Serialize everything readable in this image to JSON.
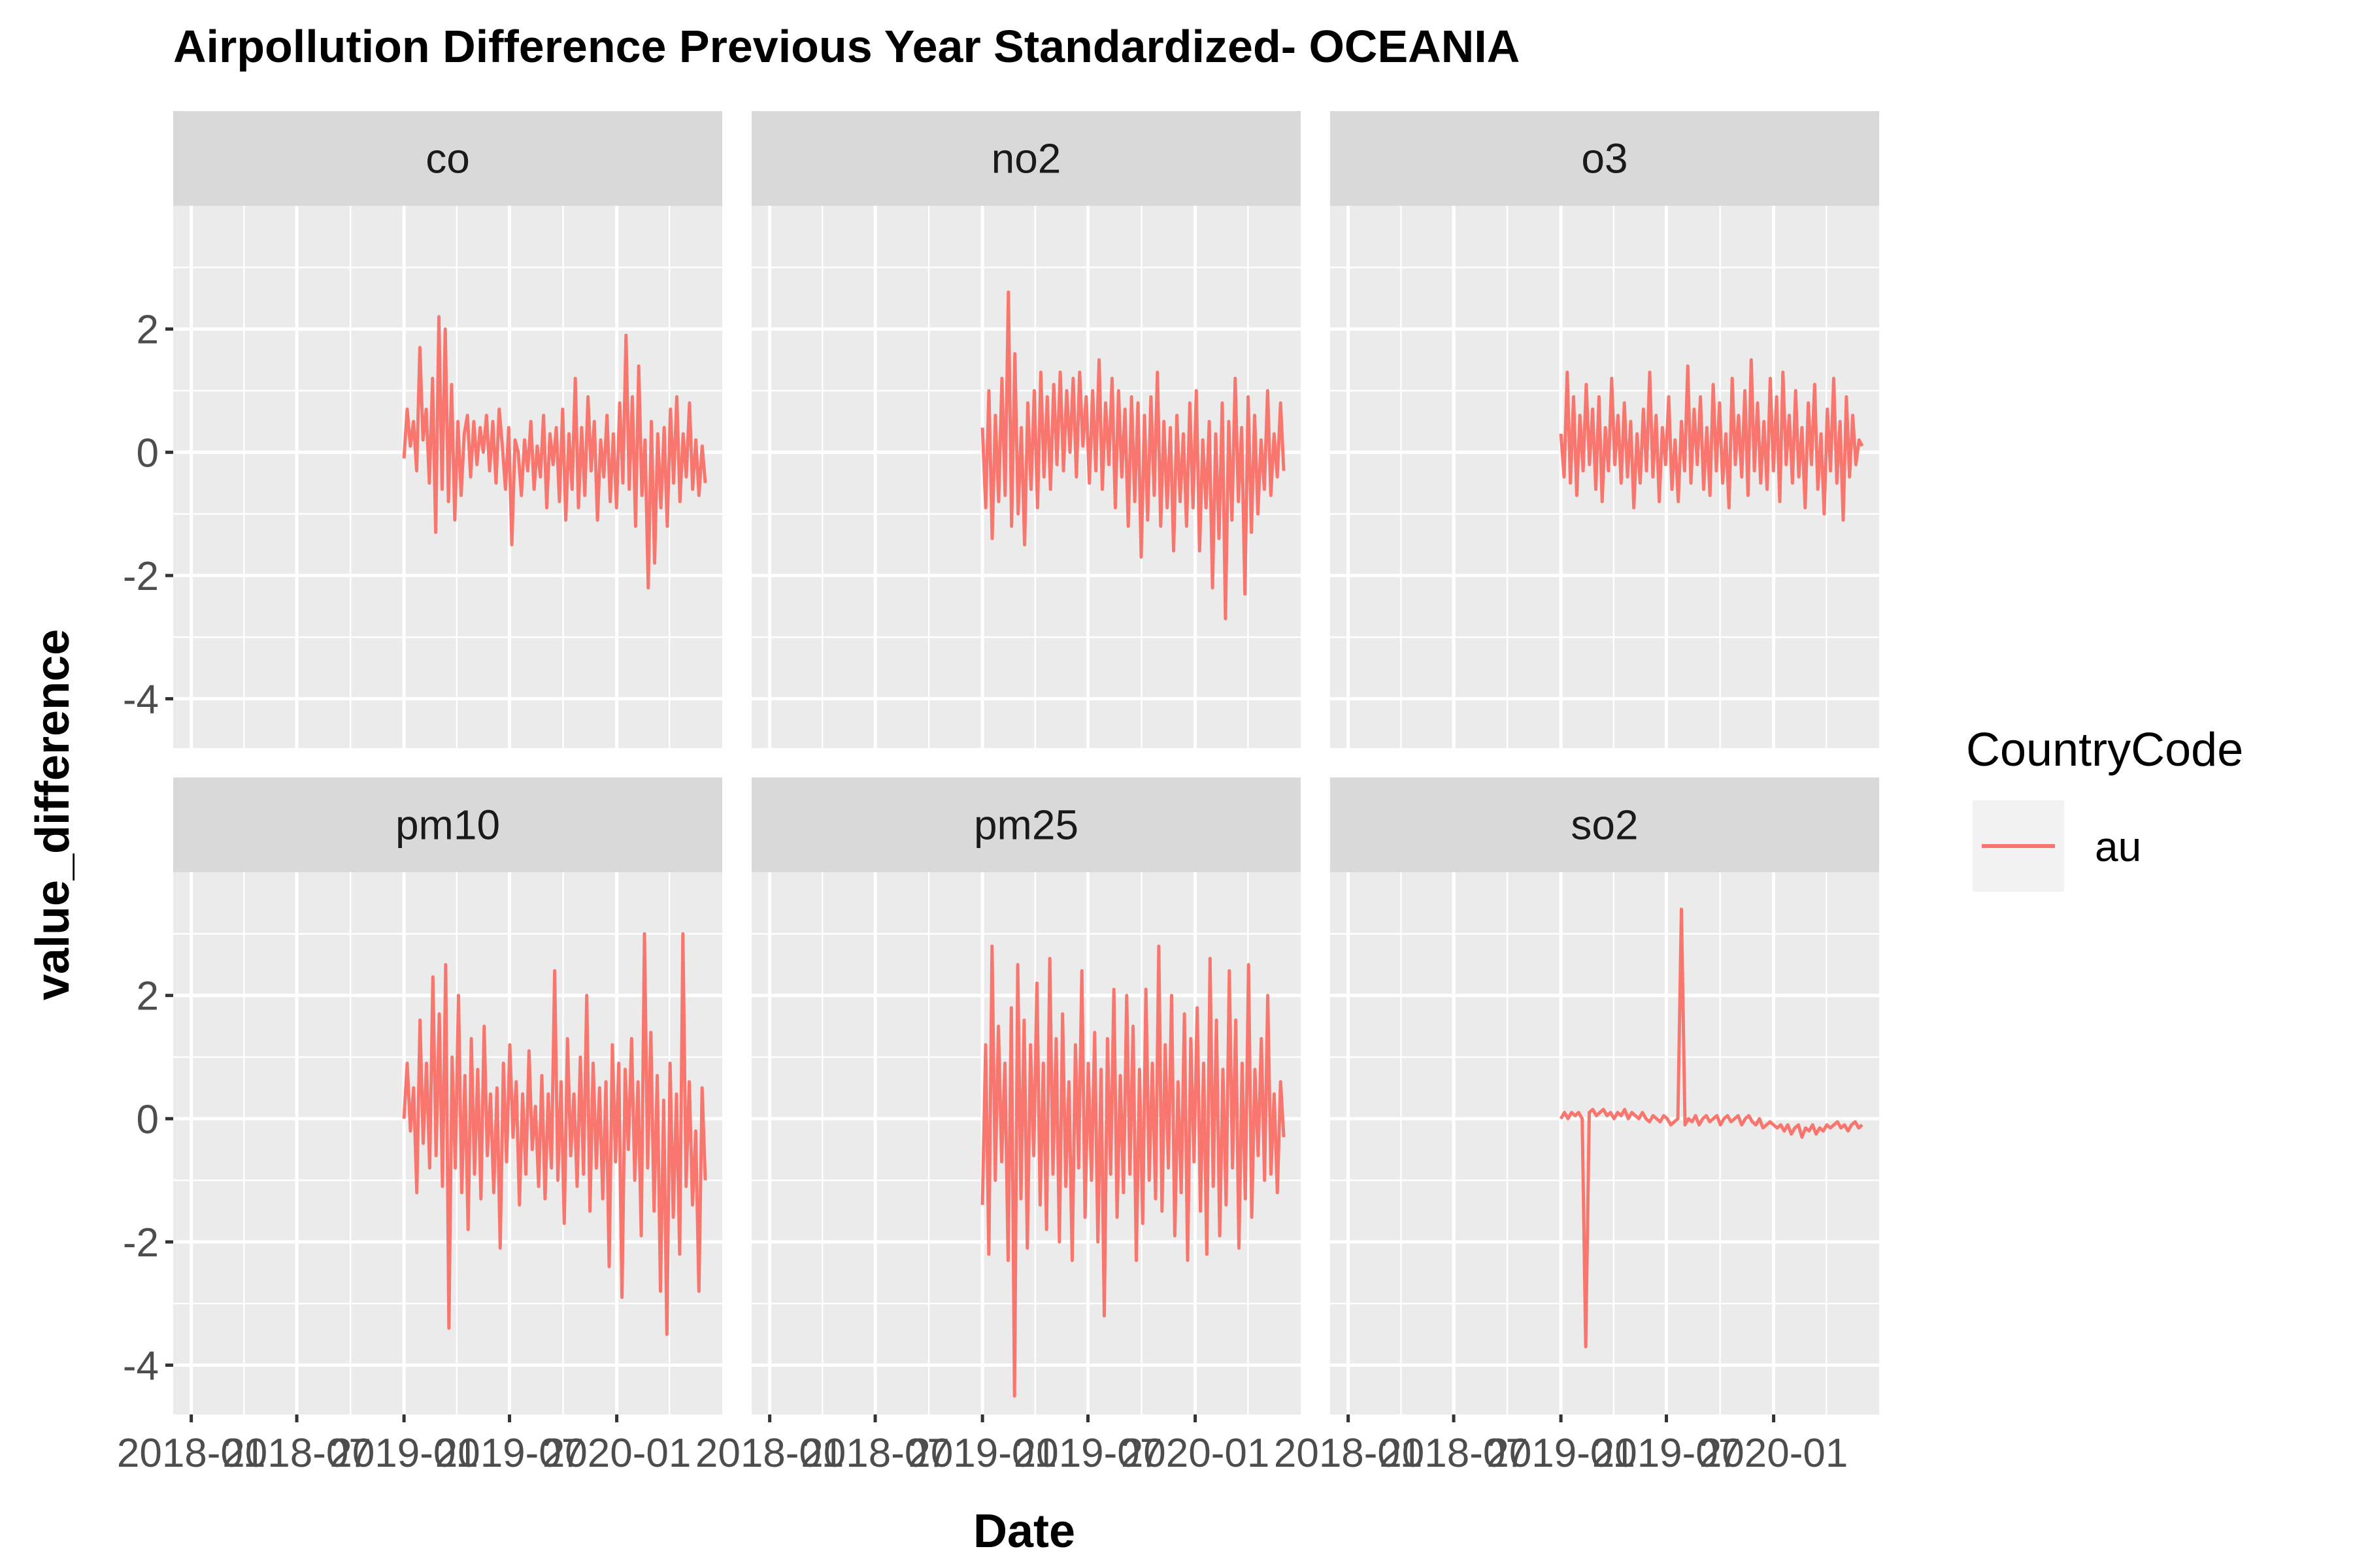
{
  "chart_data": {
    "type": "line",
    "title": "Airpollution Difference Previous Year Standardized- OCEANIA",
    "xlabel": "Date",
    "ylabel": "value_difference",
    "x_ticks": [
      "2018-01",
      "2018-07",
      "2019-01",
      "2019-07",
      "2020-01"
    ],
    "y_ticks": [
      -4,
      -2,
      0,
      2
    ],
    "xlim": [
      "2017-12-01",
      "2020-06-30"
    ],
    "ylim": [
      -4.8,
      4.0
    ],
    "grid": true,
    "legend": {
      "title": "CountryCode",
      "position": "right",
      "entries": [
        "au"
      ]
    },
    "series_color": "#F8766D",
    "panel_background": "#EBEBEB",
    "strip_background": "#D9D9D9",
    "facets": [
      {
        "label": "co",
        "series": [
          {
            "name": "au",
            "x_start": "2019-01-01",
            "x_end": "2020-06-01",
            "values": [
              -0.1,
              0.7,
              0.1,
              0.5,
              -0.3,
              1.7,
              0.2,
              0.7,
              -0.5,
              1.2,
              -1.3,
              2.2,
              -0.6,
              2.0,
              -0.8,
              1.1,
              -1.1,
              0.5,
              -0.7,
              0.3,
              0.6,
              -0.4,
              0.5,
              -0.2,
              0.4,
              0.0,
              0.6,
              -0.3,
              0.5,
              -0.5,
              0.7,
              0.1,
              -0.6,
              0.4,
              -1.5,
              0.2,
              0.0,
              -0.7,
              0.2,
              -0.3,
              0.5,
              -0.6,
              0.1,
              -0.4,
              0.6,
              -0.9,
              0.3,
              -0.2,
              0.4,
              -0.8,
              0.7,
              -1.1,
              0.3,
              -0.6,
              1.2,
              -0.9,
              0.4,
              -0.7,
              0.9,
              -0.3,
              0.5,
              -1.1,
              0.2,
              -0.4,
              0.6,
              -0.8,
              0.3,
              -0.9,
              0.8,
              -0.5,
              1.9,
              -0.6,
              0.9,
              -1.2,
              1.4,
              -0.7,
              0.2,
              -2.2,
              0.5,
              -1.8,
              0.3,
              -0.9,
              0.4,
              -1.2,
              0.7,
              -0.5,
              0.9,
              -0.8,
              0.3,
              -0.4,
              0.8,
              -0.6,
              0.2,
              -0.7,
              0.1,
              -0.5
            ]
          }
        ]
      },
      {
        "label": "no2",
        "series": [
          {
            "name": "au",
            "x_start": "2019-01-01",
            "x_end": "2020-06-01",
            "values": [
              0.4,
              -0.9,
              1.0,
              -1.4,
              0.6,
              -0.8,
              1.2,
              -0.7,
              2.6,
              -1.2,
              1.6,
              -1.0,
              0.4,
              -1.5,
              0.8,
              -0.6,
              1.0,
              -0.9,
              1.3,
              -0.4,
              0.9,
              -0.6,
              1.1,
              -0.2,
              1.3,
              -0.3,
              1.0,
              0.0,
              1.2,
              -0.4,
              1.3,
              0.1,
              0.9,
              -0.5,
              1.0,
              -0.3,
              1.5,
              -0.6,
              0.8,
              -0.2,
              1.2,
              -0.9,
              1.0,
              -0.4,
              0.7,
              -1.2,
              0.9,
              -0.8,
              0.8,
              -1.7,
              0.6,
              -1.1,
              0.9,
              -0.7,
              1.3,
              -1.2,
              0.5,
              -0.9,
              0.4,
              -1.6,
              0.6,
              -0.8,
              0.3,
              -1.2,
              0.8,
              -0.9,
              1.0,
              -1.6,
              0.2,
              -0.9,
              0.5,
              -2.2,
              0.3,
              -1.4,
              0.8,
              -2.7,
              0.5,
              -1.1,
              1.2,
              -0.8,
              0.4,
              -2.3,
              0.9,
              -1.3,
              0.6,
              -1.0,
              0.2,
              -0.6,
              1.0,
              -0.7,
              0.3,
              -0.4,
              0.8,
              -0.3
            ]
          }
        ]
      },
      {
        "label": "o3",
        "series": [
          {
            "name": "au",
            "x_start": "2019-01-01",
            "x_end": "2020-06-01",
            "values": [
              0.3,
              -0.4,
              1.3,
              -0.5,
              0.9,
              -0.7,
              0.6,
              -0.3,
              1.1,
              -0.2,
              0.7,
              -0.6,
              0.9,
              -0.8,
              0.4,
              -0.3,
              1.2,
              -0.2,
              0.6,
              -0.5,
              0.8,
              -0.4,
              0.5,
              -0.9,
              0.3,
              -0.5,
              0.7,
              -0.3,
              1.3,
              -0.4,
              0.6,
              -0.8,
              0.4,
              -0.2,
              0.9,
              -0.6,
              0.2,
              -0.8,
              0.5,
              -0.3,
              1.4,
              -0.5,
              0.7,
              -0.2,
              0.9,
              -0.6,
              0.4,
              -0.7,
              1.1,
              -0.3,
              0.8,
              -0.5,
              0.3,
              -0.9,
              1.2,
              -0.2,
              0.6,
              -0.4,
              1.0,
              -0.7,
              1.5,
              -0.3,
              0.8,
              -0.5,
              0.5,
              -0.6,
              1.2,
              -0.3,
              0.9,
              -0.8,
              1.3,
              -0.2,
              0.6,
              -0.5,
              1.0,
              -0.4,
              0.4,
              -0.9,
              0.8,
              -0.2,
              1.1,
              -0.6,
              0.3,
              -1.0,
              0.7,
              -0.3,
              1.2,
              -0.5,
              0.5,
              -1.1,
              0.9,
              -0.4,
              0.6,
              -0.2,
              0.2,
              0.1
            ]
          }
        ]
      },
      {
        "label": "pm10",
        "series": [
          {
            "name": "au",
            "x_start": "2019-01-01",
            "x_end": "2020-06-01",
            "values": [
              0.0,
              0.9,
              -0.2,
              0.5,
              -1.2,
              1.6,
              -0.4,
              0.9,
              -0.8,
              2.3,
              -0.6,
              1.7,
              -1.1,
              2.5,
              -3.4,
              1.0,
              -0.8,
              2.0,
              -1.2,
              0.7,
              -1.8,
              1.3,
              -0.9,
              0.8,
              -1.3,
              1.5,
              -0.6,
              0.4,
              -1.2,
              0.5,
              -2.1,
              0.9,
              -0.7,
              1.2,
              -0.3,
              0.6,
              -1.4,
              0.4,
              -0.9,
              1.1,
              -0.5,
              0.2,
              -1.1,
              0.7,
              -1.3,
              0.4,
              -0.8,
              2.4,
              -1.0,
              0.6,
              -1.7,
              1.3,
              -0.6,
              0.4,
              -1.1,
              1.0,
              -0.9,
              2.0,
              -1.5,
              0.9,
              -0.8,
              0.5,
              -1.3,
              0.6,
              -2.4,
              1.2,
              -0.7,
              0.9,
              -2.9,
              0.8,
              -0.5,
              1.3,
              -1.0,
              0.6,
              -1.9,
              3.0,
              -0.8,
              1.4,
              -1.5,
              0.7,
              -2.8,
              0.3,
              -3.5,
              0.9,
              -1.6,
              0.4,
              -2.2,
              3.0,
              -1.1,
              0.6,
              -1.4,
              -0.2,
              -2.8,
              0.5,
              -1.0
            ]
          }
        ]
      },
      {
        "label": "pm25",
        "series": [
          {
            "name": "au",
            "x_start": "2019-01-01",
            "x_end": "2020-06-01",
            "values": [
              -1.4,
              1.2,
              -2.2,
              2.8,
              -1.0,
              1.5,
              -0.7,
              0.9,
              -2.3,
              1.8,
              -4.5,
              2.5,
              -1.3,
              1.6,
              -2.1,
              1.2,
              -0.6,
              2.2,
              -1.4,
              0.9,
              -1.8,
              2.6,
              -0.9,
              1.3,
              -2.0,
              1.7,
              -1.1,
              0.6,
              -2.3,
              1.2,
              -0.8,
              2.4,
              -1.6,
              0.9,
              -1.0,
              1.4,
              -2.0,
              0.8,
              -3.2,
              1.3,
              -0.9,
              2.1,
              -1.6,
              0.7,
              -1.2,
              2.0,
              -0.9,
              1.5,
              -2.3,
              0.8,
              -1.7,
              2.1,
              -1.0,
              0.9,
              -1.3,
              2.8,
              -1.5,
              1.2,
              -0.8,
              2.0,
              -1.9,
              0.6,
              -1.2,
              1.7,
              -2.3,
              1.3,
              -0.7,
              1.8,
              -1.5,
              0.9,
              -2.2,
              2.6,
              -1.1,
              1.6,
              -1.9,
              0.8,
              -1.4,
              2.4,
              -0.8,
              1.6,
              -2.1,
              0.9,
              -1.3,
              2.5,
              -1.6,
              0.8,
              -0.6,
              1.3,
              -1.0,
              2.0,
              -0.9,
              0.4,
              -1.2,
              0.6,
              -0.3
            ]
          }
        ]
      },
      {
        "label": "so2",
        "series": [
          {
            "name": "au",
            "x_start": "2019-01-01",
            "x_end": "2020-06-01",
            "values": [
              0.0,
              0.1,
              0.0,
              0.1,
              0.05,
              0.1,
              0.0,
              -3.7,
              0.1,
              0.15,
              0.05,
              0.1,
              0.15,
              0.05,
              0.1,
              0.0,
              0.1,
              0.05,
              0.15,
              0.0,
              0.1,
              0.05,
              0.0,
              0.1,
              0.0,
              -0.05,
              0.05,
              0.0,
              -0.05,
              0.05,
              0.0,
              -0.1,
              -0.05,
              0.0,
              3.4,
              -0.1,
              0.0,
              -0.05,
              0.05,
              -0.1,
              0.0,
              0.05,
              -0.05,
              0.0,
              0.05,
              -0.1,
              0.0,
              0.05,
              -0.05,
              0.0,
              0.05,
              -0.1,
              0.0,
              0.05,
              -0.05,
              -0.1,
              0.0,
              -0.15,
              -0.1,
              -0.05,
              -0.1,
              -0.15,
              -0.1,
              -0.2,
              -0.1,
              -0.25,
              -0.15,
              -0.1,
              -0.3,
              -0.15,
              -0.2,
              -0.1,
              -0.25,
              -0.15,
              -0.2,
              -0.1,
              -0.15,
              -0.1,
              -0.05,
              -0.15,
              -0.1,
              -0.2,
              -0.1,
              -0.05,
              -0.15,
              -0.1
            ]
          }
        ]
      }
    ]
  }
}
